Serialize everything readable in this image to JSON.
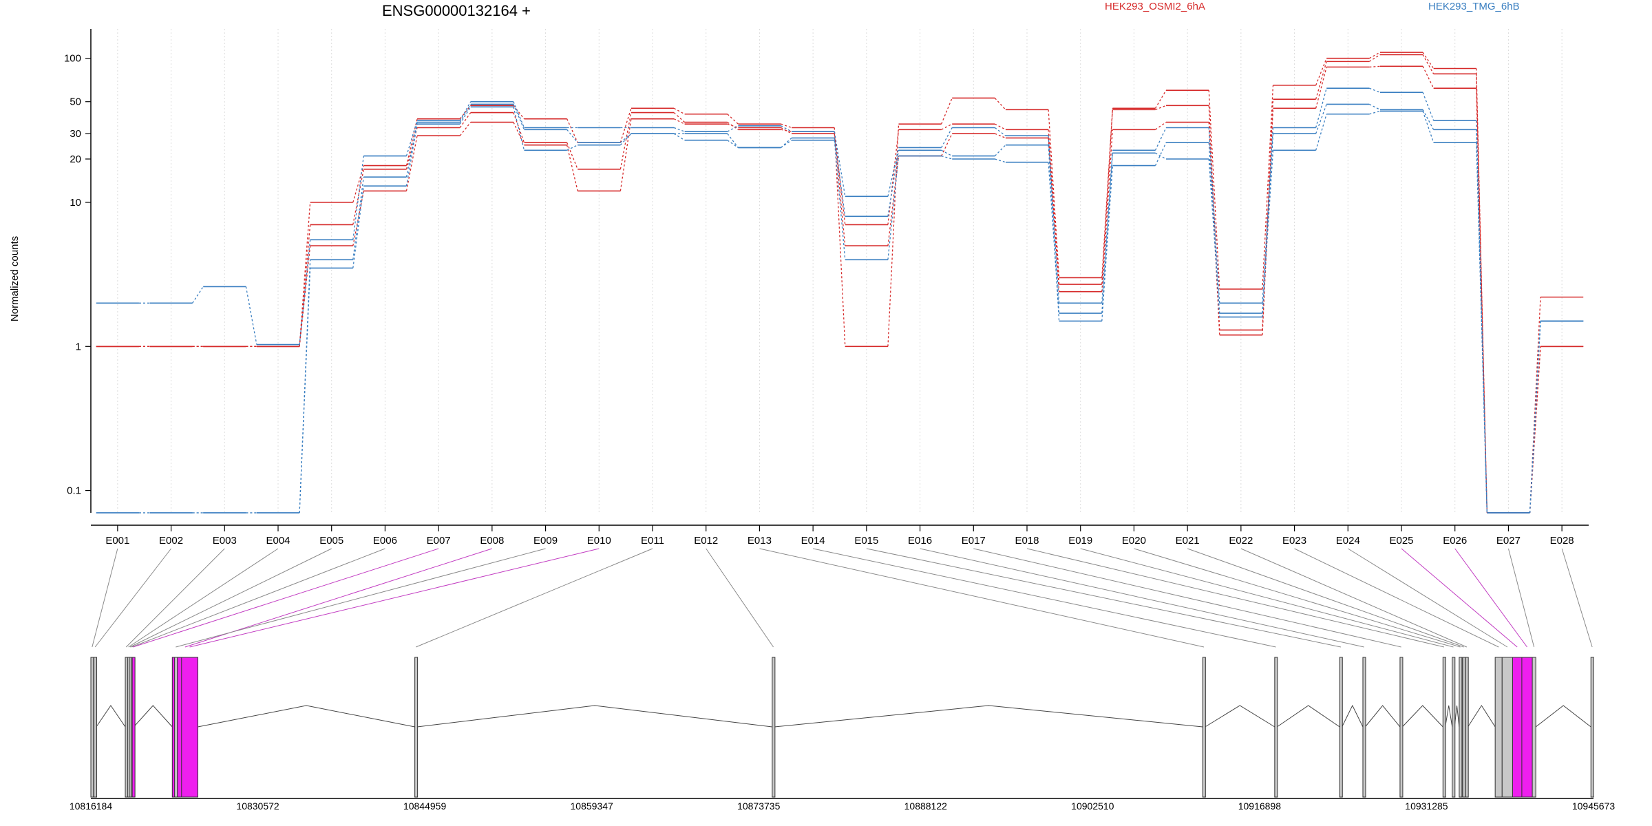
{
  "chart_data": {
    "type": "line",
    "title": "ENSG00000132164 +",
    "ylabel": "Normalized counts",
    "yscale": "log",
    "ylim": [
      0.07,
      160
    ],
    "yticks": [
      0.1,
      1,
      10,
      20,
      30,
      50,
      100
    ],
    "ytick_labels": [
      "0.1",
      "1",
      "10",
      "20",
      "30",
      "50",
      "100"
    ],
    "grid": "vertical dotted at exon centers",
    "legend": [
      {
        "name": "HEK293_OSMI2_6hA",
        "color": "#d62a2a",
        "placement": "top-center-right"
      },
      {
        "name": "HEK293_TMG_6hB",
        "color": "#3a7fc1",
        "placement": "top-right"
      }
    ],
    "categories": [
      "E001",
      "E002",
      "E003",
      "E004",
      "E005",
      "E006",
      "E007",
      "E008",
      "E009",
      "E010",
      "E011",
      "E012",
      "E013",
      "E014",
      "E015",
      "E016",
      "E017",
      "E018",
      "E019",
      "E020",
      "E021",
      "E022",
      "E023",
      "E024",
      "E025",
      "E026",
      "E027",
      "E028"
    ],
    "series": [
      {
        "group": "HEK293_OSMI2_6hA",
        "color": "#d62a2a",
        "values": [
          1,
          1,
          1,
          1,
          10,
          18,
          38,
          47,
          38,
          26,
          45,
          41,
          35,
          33,
          1,
          35,
          53,
          44,
          3.0,
          45,
          60,
          2.5,
          65,
          100,
          110,
          85,
          0.07,
          2.2
        ]
      },
      {
        "group": "HEK293_OSMI2_6hA",
        "color": "#d62a2a",
        "values": [
          1,
          1,
          1,
          1,
          7,
          17,
          33,
          42,
          26,
          17,
          42,
          36,
          32,
          31,
          7,
          32,
          35,
          32,
          2.7,
          44,
          47,
          1.3,
          52,
          95,
          106,
          78,
          0.07,
          1.0
        ]
      },
      {
        "group": "HEK293_OSMI2_6hA",
        "color": "#d62a2a",
        "values": [
          1,
          1,
          1,
          1,
          5,
          12,
          29,
          36,
          25,
          12,
          38,
          35,
          33,
          30,
          5,
          21,
          30,
          28,
          2.4,
          32,
          36,
          1.2,
          45,
          87,
          88,
          62,
          0.07,
          1.0
        ]
      },
      {
        "group": "HEK293_TMG_6hB",
        "color": "#3a7fc1",
        "values": [
          2,
          2,
          2.6,
          1.03,
          5.5,
          21,
          37,
          50,
          33,
          33,
          33,
          31,
          34,
          31,
          11,
          24,
          33,
          29,
          2.0,
          23,
          33,
          2.0,
          33,
          62,
          58,
          37,
          0.07,
          1.5
        ]
      },
      {
        "group": "HEK293_TMG_6hB",
        "color": "#3a7fc1",
        "values": [
          0.07,
          0.07,
          0.07,
          0.07,
          4,
          15,
          36,
          48,
          32,
          26,
          30,
          30,
          24,
          28,
          8,
          23,
          21,
          25,
          1.5,
          18,
          26,
          1.6,
          30,
          48,
          44,
          32,
          0.07,
          1.5
        ]
      },
      {
        "group": "HEK293_TMG_6hB",
        "color": "#3a7fc1",
        "values": [
          0.07,
          0.07,
          0.07,
          0.07,
          3.5,
          13,
          35,
          46,
          23,
          25,
          30,
          27,
          24,
          27,
          4,
          21,
          20,
          19,
          1.7,
          22,
          20,
          1.7,
          23,
          41,
          43,
          26,
          0.07,
          1.5
        ]
      }
    ],
    "genomic_axis": {
      "labels": [
        "10816184",
        "10830572",
        "10844959",
        "10859347",
        "10873735",
        "10888122",
        "10902510",
        "10916898",
        "10931285",
        "10945673"
      ],
      "range": [
        10816184,
        10945673
      ]
    },
    "exons": [
      {
        "id": "E001",
        "start": 10816184,
        "end": 10816400,
        "highlight": false
      },
      {
        "id": "E002",
        "start": 10816450,
        "end": 10816650,
        "highlight": false
      },
      {
        "id": "E003",
        "start": 10819150,
        "end": 10819300,
        "highlight": false
      },
      {
        "id": "E004",
        "start": 10819350,
        "end": 10819500,
        "highlight": false
      },
      {
        "id": "E005",
        "start": 10819500,
        "end": 10819600,
        "highlight": false
      },
      {
        "id": "E006",
        "start": 10819650,
        "end": 10819750,
        "highlight": false
      },
      {
        "id": "E007",
        "start": 10819750,
        "end": 10819880,
        "highlight": true
      },
      {
        "id": "E008",
        "start": 10823200,
        "end": 10825400,
        "highlight": true
      },
      {
        "id": "E009",
        "start": 10823400,
        "end": 10823600,
        "highlight": false
      },
      {
        "id": "E010",
        "start": 10824000,
        "end": 10825400,
        "highlight": true
      },
      {
        "id": "E011",
        "start": 10844100,
        "end": 10844300,
        "highlight": false
      },
      {
        "id": "E012",
        "start": 10874900,
        "end": 10875100,
        "highlight": false
      },
      {
        "id": "E013",
        "start": 10912000,
        "end": 10912200,
        "highlight": false
      },
      {
        "id": "E014",
        "start": 10918200,
        "end": 10918400,
        "highlight": false
      },
      {
        "id": "E015",
        "start": 10923800,
        "end": 10924000,
        "highlight": false
      },
      {
        "id": "E016",
        "start": 10925800,
        "end": 10926000,
        "highlight": false
      },
      {
        "id": "E017",
        "start": 10929000,
        "end": 10929200,
        "highlight": false
      },
      {
        "id": "E018",
        "start": 10932700,
        "end": 10932900,
        "highlight": false
      },
      {
        "id": "E019",
        "start": 10933500,
        "end": 10933700,
        "highlight": false
      },
      {
        "id": "E020",
        "start": 10934100,
        "end": 10934300,
        "highlight": false
      },
      {
        "id": "E021",
        "start": 10934400,
        "end": 10934600,
        "highlight": false
      },
      {
        "id": "E022",
        "start": 10934650,
        "end": 10934850,
        "highlight": false
      },
      {
        "id": "E023",
        "start": 10937200,
        "end": 10937800,
        "highlight": false
      },
      {
        "id": "E024",
        "start": 10937800,
        "end": 10938700,
        "highlight": false
      },
      {
        "id": "E025",
        "start": 10938700,
        "end": 10939500,
        "highlight": true
      },
      {
        "id": "E026",
        "start": 10939500,
        "end": 10940400,
        "highlight": true
      },
      {
        "id": "E027",
        "start": 10940400,
        "end": 10940700,
        "highlight": false
      },
      {
        "id": "E028",
        "start": 10945450,
        "end": 10945673,
        "highlight": false
      }
    ]
  }
}
